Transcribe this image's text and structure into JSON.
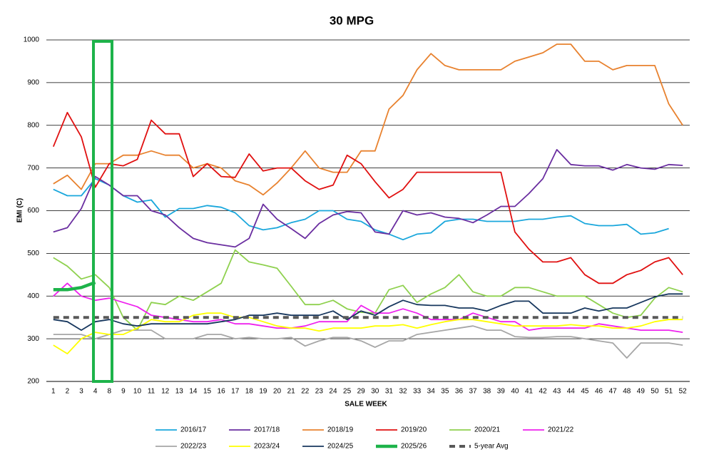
{
  "chart_data": {
    "type": "line",
    "title": "30 MPG",
    "x_label": "SALE WEEK",
    "y_label": "EMI (C)",
    "categories": [
      1,
      2,
      3,
      4,
      8,
      9,
      10,
      11,
      12,
      13,
      14,
      15,
      16,
      17,
      18,
      19,
      20,
      21,
      22,
      23,
      24,
      25,
      29,
      30,
      31,
      32,
      33,
      34,
      35,
      36,
      37,
      38,
      39,
      40,
      41,
      42,
      43,
      44,
      45,
      46,
      47,
      48,
      49,
      50,
      51,
      52
    ],
    "ylim": [
      200,
      1000
    ],
    "yticks": [
      200,
      300,
      400,
      500,
      600,
      700,
      800,
      900,
      1000
    ],
    "grid": true,
    "legend": "bottom",
    "series": [
      {
        "name": "2016/17",
        "color": "#1aa7dc",
        "values": [
          650,
          635,
          635,
          675,
          660,
          635,
          620,
          625,
          585,
          605,
          605,
          612,
          608,
          595,
          565,
          555,
          560,
          572,
          580,
          600,
          600,
          580,
          575,
          555,
          545,
          532,
          545,
          548,
          575,
          580,
          580,
          575,
          575,
          575,
          580,
          580,
          585,
          588,
          570,
          565,
          565,
          568,
          545,
          548,
          558,
          null
        ]
      },
      {
        "name": "2017/18",
        "color": "#6a2ea0",
        "values": [
          550,
          560,
          605,
          680,
          660,
          635,
          635,
          600,
          590,
          560,
          535,
          525,
          520,
          515,
          535,
          615,
          580,
          558,
          535,
          570,
          590,
          598,
          595,
          550,
          545,
          600,
          590,
          595,
          585,
          582,
          572,
          590,
          610,
          610,
          640,
          675,
          743,
          708,
          705,
          705,
          695,
          708,
          700,
          697,
          708,
          706
        ]
      },
      {
        "name": "2018/19",
        "color": "#e8822f",
        "values": [
          663,
          683,
          650,
          710,
          710,
          730,
          730,
          740,
          730,
          730,
          700,
          710,
          700,
          670,
          660,
          637,
          665,
          700,
          740,
          700,
          690,
          690,
          740,
          740,
          838,
          870,
          930,
          968,
          940,
          930,
          930,
          930,
          930,
          950,
          960,
          970,
          990,
          990,
          950,
          950,
          930,
          940,
          940,
          940,
          850,
          800
        ]
      },
      {
        "name": "2019/20",
        "color": "#e01010",
        "values": [
          750,
          830,
          773,
          655,
          710,
          705,
          720,
          812,
          780,
          780,
          680,
          710,
          680,
          678,
          733,
          693,
          700,
          700,
          670,
          650,
          660,
          730,
          710,
          668,
          630,
          650,
          690,
          690,
          690,
          690,
          690,
          690,
          690,
          550,
          510,
          480,
          480,
          490,
          450,
          430,
          430,
          450,
          460,
          480,
          490,
          450
        ]
      },
      {
        "name": "2020/21",
        "color": "#8fd14f",
        "values": [
          490,
          470,
          440,
          450,
          420,
          350,
          320,
          385,
          380,
          400,
          390,
          410,
          430,
          508,
          480,
          473,
          465,
          423,
          380,
          380,
          390,
          370,
          362,
          360,
          415,
          425,
          385,
          405,
          420,
          450,
          410,
          400,
          400,
          420,
          420,
          410,
          400,
          400,
          400,
          380,
          360,
          350,
          355,
          395,
          420,
          410
        ]
      },
      {
        "name": "2021/22",
        "color": "#ee22ee",
        "values": [
          400,
          430,
          400,
          390,
          395,
          385,
          375,
          355,
          350,
          345,
          340,
          340,
          345,
          335,
          335,
          330,
          325,
          325,
          330,
          340,
          340,
          340,
          378,
          360,
          360,
          370,
          360,
          345,
          345,
          345,
          360,
          350,
          340,
          340,
          320,
          325,
          325,
          325,
          325,
          335,
          330,
          325,
          320,
          320,
          320,
          315
        ]
      },
      {
        "name": "2022/23",
        "color": "#a6a6a6",
        "values": [
          310,
          310,
          310,
          300,
          310,
          320,
          320,
          320,
          300,
          300,
          300,
          310,
          310,
          300,
          303,
          300,
          300,
          303,
          283,
          295,
          303,
          303,
          295,
          280,
          295,
          295,
          310,
          315,
          320,
          325,
          330,
          320,
          320,
          305,
          303,
          303,
          305,
          305,
          300,
          295,
          290,
          255,
          290,
          290,
          290,
          285
        ]
      },
      {
        "name": "2023/24",
        "color": "#ffff00",
        "values": [
          285,
          265,
          300,
          315,
          310,
          310,
          325,
          345,
          340,
          340,
          355,
          360,
          360,
          350,
          350,
          340,
          330,
          325,
          325,
          318,
          325,
          325,
          325,
          330,
          330,
          333,
          325,
          333,
          340,
          345,
          345,
          340,
          335,
          330,
          330,
          330,
          330,
          333,
          330,
          330,
          325,
          325,
          330,
          340,
          345,
          345
        ]
      },
      {
        "name": "2024/25",
        "color": "#17375e",
        "values": [
          345,
          340,
          320,
          340,
          345,
          335,
          330,
          335,
          335,
          335,
          335,
          335,
          340,
          345,
          355,
          355,
          360,
          355,
          355,
          355,
          365,
          345,
          365,
          355,
          375,
          390,
          380,
          378,
          378,
          372,
          372,
          365,
          378,
          388,
          388,
          360,
          360,
          360,
          372,
          365,
          372,
          372,
          385,
          398,
          405,
          405
        ]
      },
      {
        "name": "2025/26",
        "color": "#1db34a",
        "values": [
          415,
          415,
          420,
          432,
          null,
          null,
          null,
          null,
          null,
          null,
          null,
          null,
          null,
          null,
          null,
          null,
          null,
          null,
          null,
          null,
          null,
          null,
          null,
          null,
          null,
          null,
          null,
          null,
          null,
          null,
          null,
          null,
          null,
          null,
          null,
          null,
          null,
          null,
          null,
          null,
          null,
          null,
          null,
          null,
          null,
          null
        ]
      },
      {
        "name": "5-year Avg",
        "color": "#595959",
        "values": [
          350,
          350,
          350,
          350,
          350,
          350,
          350,
          350,
          350,
          350,
          350,
          350,
          350,
          350,
          350,
          350,
          350,
          350,
          350,
          350,
          350,
          350,
          350,
          350,
          350,
          350,
          350,
          350,
          350,
          350,
          350,
          350,
          350,
          350,
          350,
          350,
          350,
          350,
          350,
          350,
          350,
          350,
          350,
          350,
          350,
          350
        ]
      }
    ]
  }
}
